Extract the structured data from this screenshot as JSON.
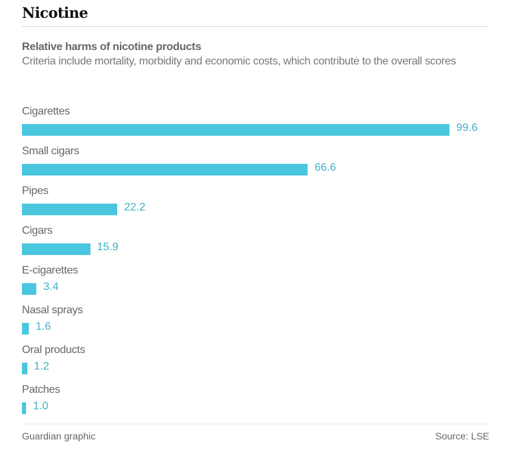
{
  "colors": {
    "bar": "#4bc6df",
    "value": "#3fb0c8"
  },
  "chart_data": {
    "type": "bar",
    "orientation": "horizontal",
    "title": "Nicotine",
    "subtitle": "Relative harms of nicotine products",
    "description": "Criteria include mortality, morbidity and economic costs, which contribute to the overall scores",
    "categories": [
      "Cigarettes",
      "Small cigars",
      "Pipes",
      "Cigars",
      "E-cigarettes",
      "Nasal sprays",
      "Oral products",
      "Patches"
    ],
    "values": [
      99.6,
      66.6,
      22.2,
      15.9,
      3.4,
      1.6,
      1.2,
      1.0
    ],
    "value_labels": [
      "99.6",
      "66.6",
      "22.2",
      "15.9",
      "3.4",
      "1.6",
      "1.2",
      "1.0"
    ],
    "xlim": [
      0,
      100
    ],
    "grid": false
  },
  "footer": {
    "credit": "Guardian graphic",
    "source": "Source: LSE"
  }
}
